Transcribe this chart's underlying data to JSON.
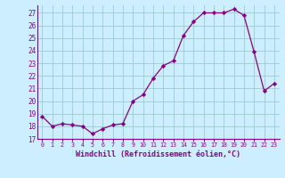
{
  "x": [
    0,
    1,
    2,
    3,
    4,
    5,
    6,
    7,
    8,
    9,
    10,
    11,
    12,
    13,
    14,
    15,
    16,
    17,
    18,
    19,
    20,
    21,
    22,
    23
  ],
  "y": [
    18.8,
    18.0,
    18.2,
    18.1,
    18.0,
    17.4,
    17.8,
    18.1,
    18.2,
    20.0,
    20.5,
    21.8,
    22.8,
    23.2,
    25.2,
    26.3,
    27.0,
    27.0,
    27.0,
    27.3,
    26.8,
    23.9,
    20.8,
    21.4
  ],
  "line_color": "#880088",
  "marker": "D",
  "marker_size": 2.2,
  "bg_color": "#cceeff",
  "grid_color": "#99cccc",
  "xlabel": "Windchill (Refroidissement éolien,°C)",
  "xlabel_color": "#880088",
  "tick_color": "#880088",
  "spine_color": "#880088",
  "ylim": [
    17,
    27.6
  ],
  "yticks": [
    17,
    18,
    19,
    20,
    21,
    22,
    23,
    24,
    25,
    26,
    27
  ],
  "xlim": [
    -0.5,
    23.5
  ],
  "xticks": [
    0,
    1,
    2,
    3,
    4,
    5,
    6,
    7,
    8,
    9,
    10,
    11,
    12,
    13,
    14,
    15,
    16,
    17,
    18,
    19,
    20,
    21,
    22,
    23
  ]
}
